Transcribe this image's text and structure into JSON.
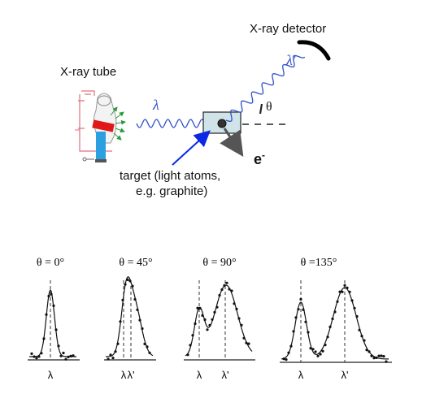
{
  "labels": {
    "tube": "X-ray tube",
    "detector": "X-ray detector",
    "lambda": "λ",
    "lambda_prime": "λ'",
    "theta": "θ",
    "electron": "e",
    "electron_sup": "-",
    "target_line1": "target (light atoms,",
    "target_line2": "e.g. graphite)"
  },
  "panels": [
    {
      "title": "θ = 0°",
      "ticks": [
        "λ"
      ]
    },
    {
      "title": "θ = 45°",
      "ticks": [
        "λ",
        "λ'"
      ]
    },
    {
      "title": "θ = 90°",
      "ticks": [
        "λ",
        "λ'"
      ]
    },
    {
      "title": "θ =135°",
      "ticks": [
        "λ",
        "λ'"
      ]
    }
  ],
  "colors": {
    "wave": "#3050c8",
    "pointer_arrow": "#0a28e6",
    "target_box": "#cfe3e8",
    "tube_anode": "#e01818",
    "tube_cathode": "#2aa0e0"
  }
}
